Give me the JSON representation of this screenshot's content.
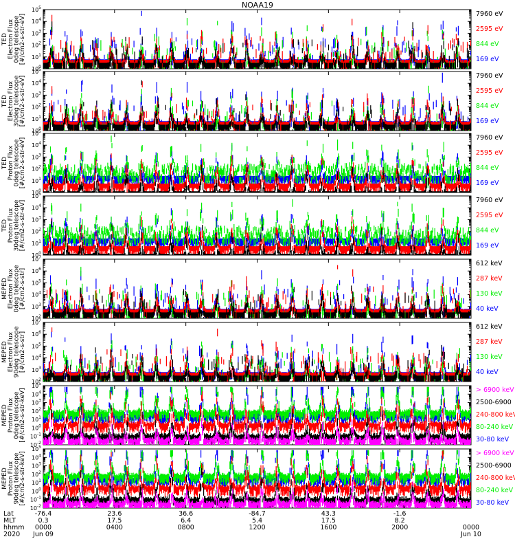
{
  "title": "NOAA19",
  "colors": {
    "black": "#000000",
    "red": "#ff0000",
    "green": "#00ee00",
    "blue": "#0000ff",
    "magenta": "#ff00ff"
  },
  "chart_data": [
    {
      "type": "line",
      "panel": 1,
      "ylabel": [
        "TED",
        "Electron Flux",
        "0deg telescope",
        "[#/cm2-s-str-eV]"
      ],
      "ylog": true,
      "ylim": [
        1,
        100000
      ],
      "tick_exponents": [
        0,
        1,
        2,
        3,
        4,
        5
      ],
      "series": [
        {
          "name": "7960 eV",
          "color": "#000000"
        },
        {
          "name": "2595 eV",
          "color": "#ff0000"
        },
        {
          "name": "844 eV",
          "color": "#00ee00"
        },
        {
          "name": "169 eV",
          "color": "#0000ff"
        }
      ]
    },
    {
      "type": "line",
      "panel": 2,
      "ylabel": [
        "TED",
        "Electron Flux",
        "30deg telescope",
        "[#/cm2-s-str-eV]"
      ],
      "ylog": true,
      "ylim": [
        1,
        100000
      ],
      "tick_exponents": [
        0,
        1,
        2,
        3,
        4,
        5
      ],
      "series": [
        {
          "name": "7960 eV",
          "color": "#000000"
        },
        {
          "name": "2595 eV",
          "color": "#ff0000"
        },
        {
          "name": "844 eV",
          "color": "#00ee00"
        },
        {
          "name": "169 eV",
          "color": "#0000ff"
        }
      ]
    },
    {
      "type": "line",
      "panel": 3,
      "ylabel": [
        "TED",
        "Proton Flux",
        "0deg telescope",
        "[#/cm2-s-str-eV]"
      ],
      "ylog": true,
      "ylim": [
        1,
        100000
      ],
      "tick_exponents": [
        0,
        1,
        2,
        3,
        4,
        5
      ],
      "series": [
        {
          "name": "7960 eV",
          "color": "#000000"
        },
        {
          "name": "2595 eV",
          "color": "#ff0000"
        },
        {
          "name": "844 eV",
          "color": "#00ee00"
        },
        {
          "name": "169 eV",
          "color": "#0000ff"
        }
      ]
    },
    {
      "type": "line",
      "panel": 4,
      "ylabel": [
        "TED",
        "Proton Flux",
        "30deg telescope",
        "[#/cm2-s-str-eV]"
      ],
      "ylog": true,
      "ylim": [
        1,
        100000
      ],
      "tick_exponents": [
        0,
        1,
        2,
        3,
        4,
        5
      ],
      "series": [
        {
          "name": "7960 eV",
          "color": "#000000"
        },
        {
          "name": "2595 eV",
          "color": "#ff0000"
        },
        {
          "name": "844 eV",
          "color": "#00ee00"
        },
        {
          "name": "169 eV",
          "color": "#0000ff"
        }
      ]
    },
    {
      "type": "line",
      "panel": 5,
      "ylabel": [
        "MEPED",
        "Electron Flux",
        "0deg telescope",
        "[#/cm2-s-str]"
      ],
      "ylog": true,
      "ylim": [
        100,
        10000000
      ],
      "tick_exponents": [
        2,
        3,
        4,
        5,
        6,
        7
      ],
      "series": [
        {
          "name": "612 keV",
          "color": "#000000"
        },
        {
          "name": "287 keV",
          "color": "#ff0000"
        },
        {
          "name": "130 keV",
          "color": "#00ee00"
        },
        {
          "name": "40 keV",
          "color": "#0000ff"
        }
      ]
    },
    {
      "type": "line",
      "panel": 6,
      "ylabel": [
        "MEPED",
        "Electron Flux",
        "90deg telescope",
        "[#/cm2-s-str]"
      ],
      "ylog": true,
      "ylim": [
        100,
        10000000
      ],
      "tick_exponents": [
        2,
        3,
        4,
        5,
        6,
        7
      ],
      "series": [
        {
          "name": "612 keV",
          "color": "#000000"
        },
        {
          "name": "287 keV",
          "color": "#ff0000"
        },
        {
          "name": "130 keV",
          "color": "#00ee00"
        },
        {
          "name": "40 keV",
          "color": "#0000ff"
        }
      ]
    },
    {
      "type": "line",
      "panel": 7,
      "ylabel": [
        "MEPED",
        "Proton Flux",
        "0deg telescope",
        "[#/cm2-s-str-keV]"
      ],
      "ylog": true,
      "ylim": [
        0.01,
        100000
      ],
      "tick_exponents": [
        -2,
        -1,
        0,
        1,
        2,
        3,
        4,
        5
      ],
      "series": [
        {
          "name": "> 6900 keV",
          "color": "#ff00ff"
        },
        {
          "name": "2500-6900",
          "color": "#000000"
        },
        {
          "name": "240-800 keV",
          "color": "#ff0000"
        },
        {
          "name": "80-240 keV",
          "color": "#00ee00"
        },
        {
          "name": "30-80 keV",
          "color": "#0000ff"
        }
      ]
    },
    {
      "type": "line",
      "panel": 8,
      "ylabel": [
        "MEPED",
        "Proton Flux",
        "90deg telescope",
        "[#/cm2-s-str-keV]"
      ],
      "ylog": true,
      "ylim": [
        0.01,
        100000
      ],
      "tick_exponents": [
        -2,
        -1,
        0,
        1,
        2,
        3,
        4,
        5
      ],
      "series": [
        {
          "name": "> 6900 keV",
          "color": "#ff00ff"
        },
        {
          "name": "2500-6900",
          "color": "#000000"
        },
        {
          "name": "240-800 keV",
          "color": "#ff0000"
        },
        {
          "name": "80-240 keV",
          "color": "#00ee00"
        },
        {
          "name": "30-80 keV",
          "color": "#0000ff"
        }
      ]
    }
  ],
  "x_axis": {
    "row_labels": [
      "Lat",
      "MLT",
      "hhmm",
      "2020"
    ],
    "ticks": [
      {
        "hour": 0,
        "lat": "-76.4",
        "mlt": "0.3",
        "hhmm": "0000",
        "date": "Jun 09"
      },
      {
        "hour": 4,
        "lat": "23.6",
        "mlt": "17.5",
        "hhmm": "0400",
        "date": ""
      },
      {
        "hour": 8,
        "lat": "36.6",
        "mlt": "6.4",
        "hhmm": "0800",
        "date": ""
      },
      {
        "hour": 12,
        "lat": "-84.7",
        "mlt": "5.4",
        "hhmm": "1200",
        "date": ""
      },
      {
        "hour": 16,
        "lat": "43.3",
        "mlt": "17.5",
        "hhmm": "1600",
        "date": ""
      },
      {
        "hour": 20,
        "lat": "-1.6",
        "mlt": "8.2",
        "hhmm": "2000",
        "date": ""
      },
      {
        "hour": 24,
        "lat": "",
        "mlt": "",
        "hhmm": "0000",
        "date": "Jun 10"
      }
    ],
    "range_hours": [
      0,
      24
    ]
  }
}
